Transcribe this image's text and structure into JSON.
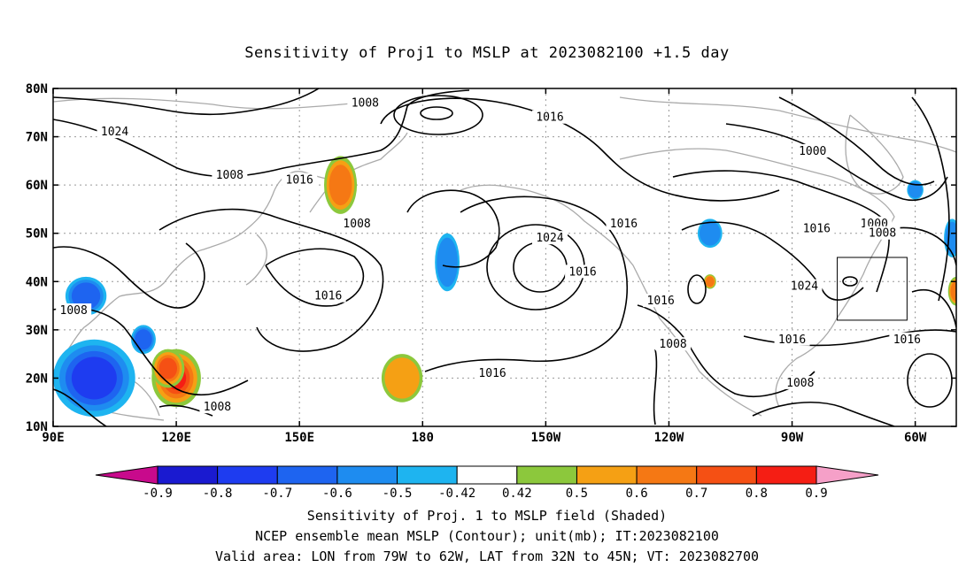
{
  "title": "Sensitivity of Proj1 to MSLP at 2023082100 +1.5 day",
  "chart_data": {
    "type": "heatmap",
    "title": "Sensitivity of Proj1 to MSLP at 2023082100 +1.5 day",
    "x_tick_labels": [
      "90E",
      "120E",
      "150E",
      "180",
      "150W",
      "120W",
      "90W",
      "60W"
    ],
    "y_tick_labels": [
      "10N",
      "20N",
      "30N",
      "40N",
      "50N",
      "60N",
      "70N",
      "80N"
    ],
    "xlim_deg_east": [
      90,
      310
    ],
    "ylim_deg_north": [
      10,
      80
    ],
    "grid": true,
    "contour_variable": "MSLP (mb)",
    "contour_labels": [
      {
        "text": "1008",
        "lon": 166,
        "lat": 77
      },
      {
        "text": "1016",
        "lon": 211,
        "lat": 74
      },
      {
        "text": "1024",
        "lon": 105,
        "lat": 71
      },
      {
        "text": "1000",
        "lon": 275,
        "lat": 67
      },
      {
        "text": "1008",
        "lon": 133,
        "lat": 62
      },
      {
        "text": "1016",
        "lon": 150,
        "lat": 61
      },
      {
        "text": "1000",
        "lon": 290,
        "lat": 52
      },
      {
        "text": "1016",
        "lon": 229,
        "lat": 52
      },
      {
        "text": "1016",
        "lon": 276,
        "lat": 51
      },
      {
        "text": "1008",
        "lon": 292,
        "lat": 50
      },
      {
        "text": "1008",
        "lon": 164,
        "lat": 52
      },
      {
        "text": "1024",
        "lon": 211,
        "lat": 49
      },
      {
        "text": "1016",
        "lon": 219,
        "lat": 42
      },
      {
        "text": "1024",
        "lon": 273,
        "lat": 39
      },
      {
        "text": "1016",
        "lon": 157,
        "lat": 37
      },
      {
        "text": "1016",
        "lon": 238,
        "lat": 36
      },
      {
        "text": "1008",
        "lon": 95,
        "lat": 34
      },
      {
        "text": "1016",
        "lon": 270,
        "lat": 28
      },
      {
        "text": "1016",
        "lon": 298,
        "lat": 28
      },
      {
        "text": "1008",
        "lon": 241,
        "lat": 27
      },
      {
        "text": "1016",
        "lon": 197,
        "lat": 21
      },
      {
        "text": "1008",
        "lon": 272,
        "lat": 19
      },
      {
        "text": "1008",
        "lon": 130,
        "lat": 14
      }
    ],
    "sensitivity_patches": [
      {
        "lon": 160,
        "lat": 60,
        "rx": 4,
        "ry": 6,
        "value": 0.6
      },
      {
        "lon": 175,
        "lat": 20,
        "rx": 5,
        "ry": 5,
        "value": 0.55
      },
      {
        "lon": 120,
        "lat": 20,
        "rx": 6,
        "ry": 6,
        "value": 0.8
      },
      {
        "lon": 118,
        "lat": 22,
        "rx": 4,
        "ry": 4,
        "value": 0.7
      },
      {
        "lon": 250,
        "lat": 40,
        "rx": 1.5,
        "ry": 1.5,
        "value": 0.6
      },
      {
        "lon": 310,
        "lat": 38,
        "rx": 2,
        "ry": 3,
        "value": 0.6
      },
      {
        "lon": 98,
        "lat": 37,
        "rx": 5,
        "ry": 4,
        "value": -0.6
      },
      {
        "lon": 100,
        "lat": 20,
        "rx": 10,
        "ry": 8,
        "value": -0.7
      },
      {
        "lon": 112,
        "lat": 28,
        "rx": 3,
        "ry": 3,
        "value": -0.6
      },
      {
        "lon": 186,
        "lat": 44,
        "rx": 3,
        "ry": 6,
        "value": -0.5
      },
      {
        "lon": 250,
        "lat": 50,
        "rx": 3,
        "ry": 3,
        "value": -0.5
      },
      {
        "lon": 309,
        "lat": 49,
        "rx": 2,
        "ry": 4,
        "value": -0.5
      },
      {
        "lon": 300,
        "lat": 59,
        "rx": 2,
        "ry": 2,
        "value": -0.5
      }
    ],
    "valid_area_box": {
      "lon": [
        -79,
        -62
      ],
      "lat": [
        32,
        45
      ]
    },
    "colorbar": {
      "labels": [
        "-0.9",
        "-0.8",
        "-0.7",
        "-0.6",
        "-0.5",
        "-0.42",
        "0.42",
        "0.5",
        "0.6",
        "0.7",
        "0.8",
        "0.9"
      ],
      "colors": [
        "#1a1ad0",
        "#1e3cf0",
        "#1e64f0",
        "#1e8cf0",
        "#1eb4f0",
        "#ffffff",
        "#8cc83c",
        "#f5a014",
        "#f57814",
        "#f55014",
        "#f51e14"
      ],
      "low_arrow_color": "#c80a8c",
      "high_arrow_color": "#f5a0c8"
    }
  },
  "footer": {
    "line1": "Sensitivity of Proj. 1 to MSLP field (Shaded)",
    "line2": "NCEP ensemble mean MSLP (Contour); unit(mb); IT:2023082100",
    "line3": "Valid area: LON from 79W to 62W, LAT from 32N to 45N; VT: 2023082700"
  }
}
